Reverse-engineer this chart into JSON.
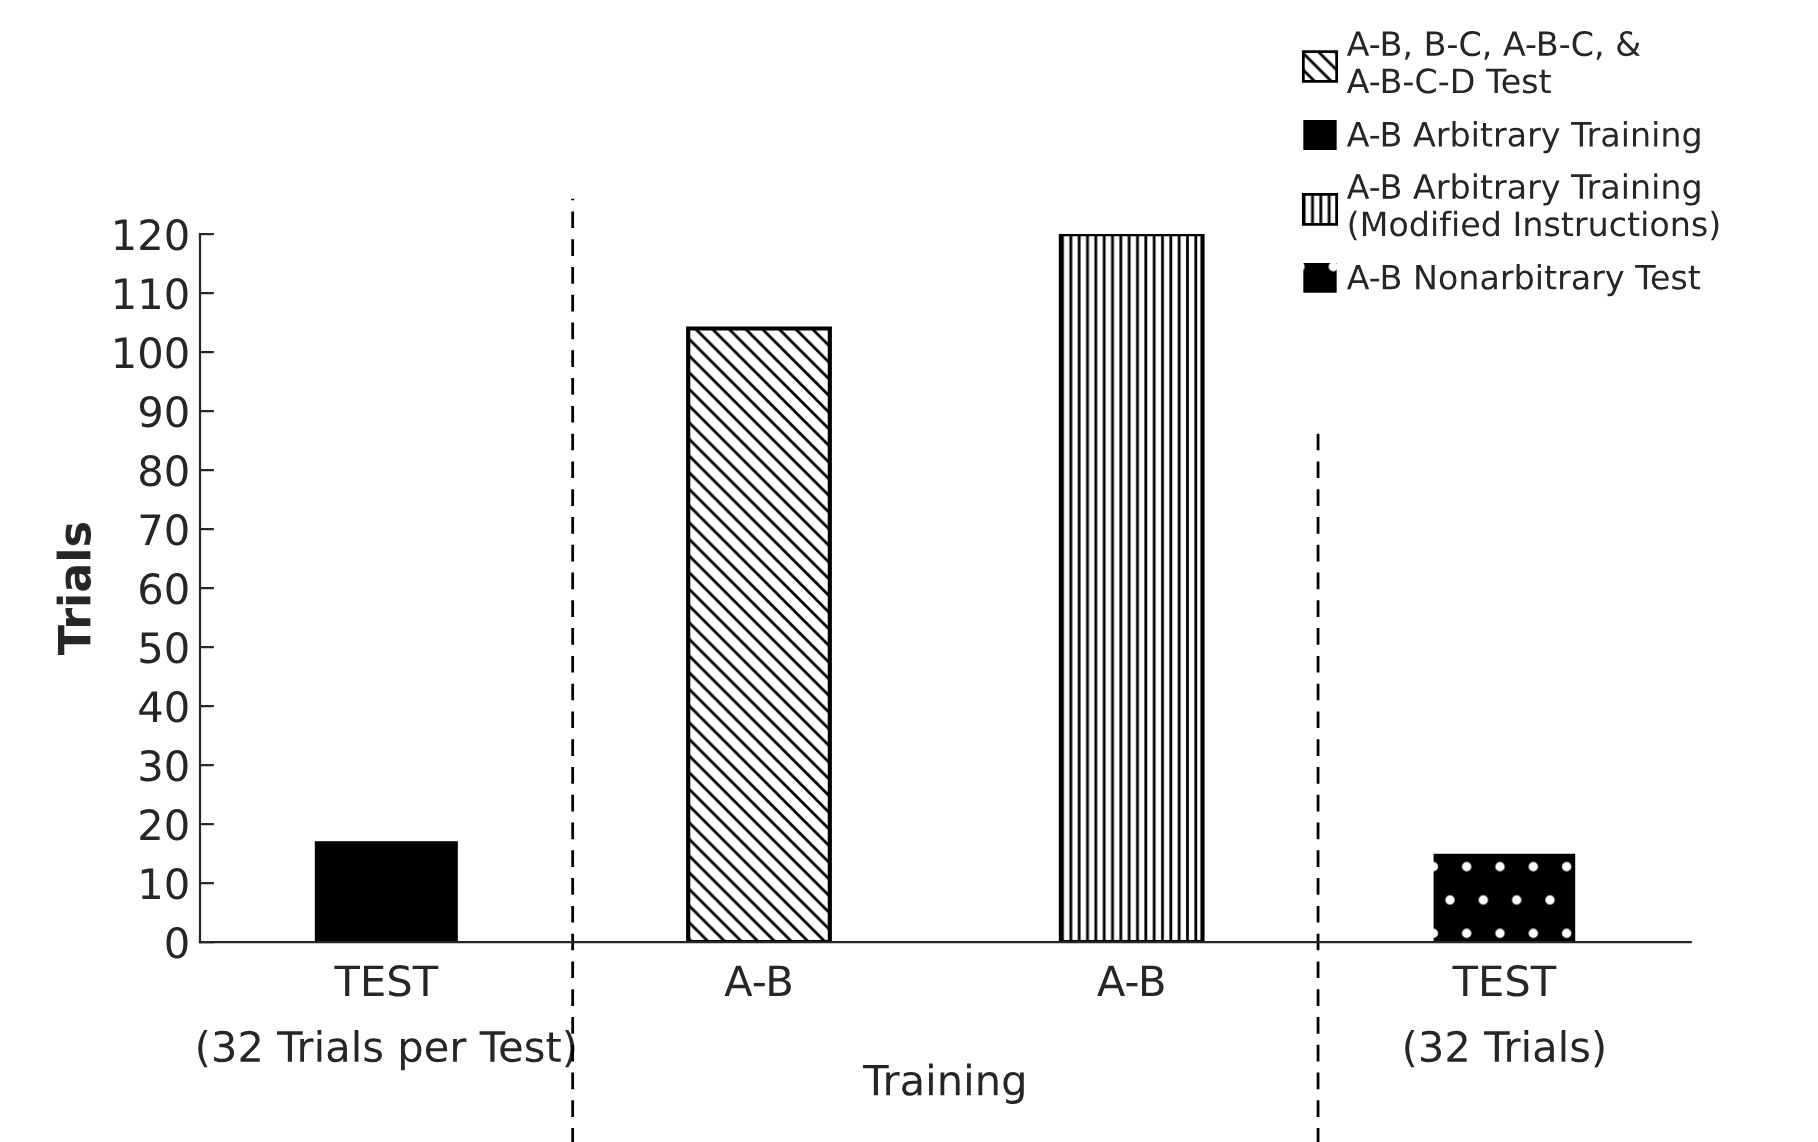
{
  "chart_data": {
    "type": "bar",
    "categories": [
      "TEST\n(32 Trials per Test)",
      "A-B",
      "A-B",
      "TEST\n(32 Trials)"
    ],
    "ylabel": "Trials",
    "series": [
      {
        "name": "A-B, B-C, A-B-C, &\nA-B-C-D Test",
        "color": "#000000",
        "values": [
          null,
          104,
          null,
          null
        ]
      },
      {
        "name": "A-B Arbitrary Training",
        "color": "#000000",
        "values": [
          17,
          null,
          null,
          null
        ]
      },
      {
        "name": "A-B Arbitrary Training\n(Modified Instructions)",
        "color": "#000000",
        "values": [
          null,
          null,
          120,
          null
        ]
      },
      {
        "name": "A-B Nonarbitrary Test",
        "color": "#000000",
        "values": [
          null,
          null,
          null,
          15
        ]
      }
    ],
    "annotations": [
      "Training"
    ],
    "ylim": [
      0,
      120
    ],
    "yticks": [
      0,
      10,
      20,
      30,
      40,
      50,
      60,
      70,
      80,
      90,
      100,
      110,
      120
    ],
    "grid": false,
    "legend": "top right"
  }
}
